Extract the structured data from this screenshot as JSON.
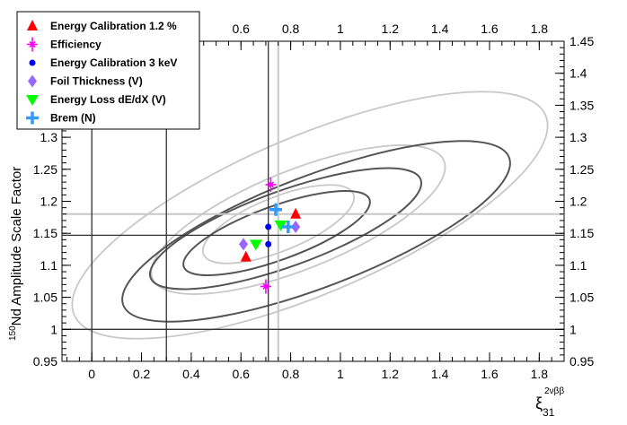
{
  "chart_data": {
    "type": "scatter",
    "title": "",
    "xlabel_main": "ξ",
    "xlabel_sub": "31",
    "xlabel_sup": "2νββ",
    "ylabel_sup": "150",
    "ylabel_main": "Nd Amplitude Scale Factor",
    "xlim": [
      -0.12,
      1.9
    ],
    "ylim": [
      0.95,
      1.45
    ],
    "x_ticks": [
      "0",
      "0.2",
      "0.4",
      "0.6",
      "0.8",
      "1",
      "1.2",
      "1.4",
      "1.6",
      "1.8"
    ],
    "x_ticks_top": [
      "0.6",
      "0.8",
      "1",
      "1.2",
      "1.4",
      "1.6",
      "1.8"
    ],
    "y_ticks": [
      "0.95",
      "1",
      "1.05",
      "1.1",
      "1.15",
      "1.2",
      "1.25",
      "1.3",
      "1.35",
      "1.4",
      "1.45"
    ],
    "legend_position": "top-left",
    "series": [
      {
        "name": "Energy Calibration 1.2 %",
        "marker": "triangle-up",
        "color": "#ff0000",
        "points": [
          [
            0.62,
            1.113
          ],
          [
            0.82,
            1.18
          ]
        ]
      },
      {
        "name": "Efficiency",
        "marker": "star",
        "color": "#ff00ff",
        "points": [
          [
            0.72,
            1.226
          ],
          [
            0.7,
            1.067
          ]
        ]
      },
      {
        "name": "Energy Calibration 3 keV",
        "marker": "circle",
        "color": "#0000ff",
        "points": [
          [
            0.71,
            1.16
          ],
          [
            0.71,
            1.133
          ]
        ]
      },
      {
        "name": "Foil Thickness (V)",
        "marker": "diamond",
        "color": "#9966ff",
        "points": [
          [
            0.61,
            1.133
          ],
          [
            0.82,
            1.16
          ]
        ]
      },
      {
        "name": "Energy Loss dE/dX (V)",
        "marker": "triangle-down",
        "color": "#00ff00",
        "points": [
          [
            0.66,
            1.133
          ],
          [
            0.76,
            1.163
          ]
        ]
      },
      {
        "name": "Brem (N)",
        "marker": "cross",
        "color": "#3399ff",
        "points": [
          [
            0.74,
            1.187
          ],
          [
            0.79,
            1.16
          ]
        ]
      }
    ],
    "reference_lines": {
      "dark_vertical_x": [
        0.0,
        0.3,
        0.71
      ],
      "dark_horizontal_y": [
        1.0,
        1.147
      ],
      "light_vertical_x": [
        0.75
      ],
      "light_horizontal_y": [
        1.18
      ]
    },
    "contour_colors": {
      "dark": "#555555",
      "light": "#c8c8c8"
    }
  }
}
